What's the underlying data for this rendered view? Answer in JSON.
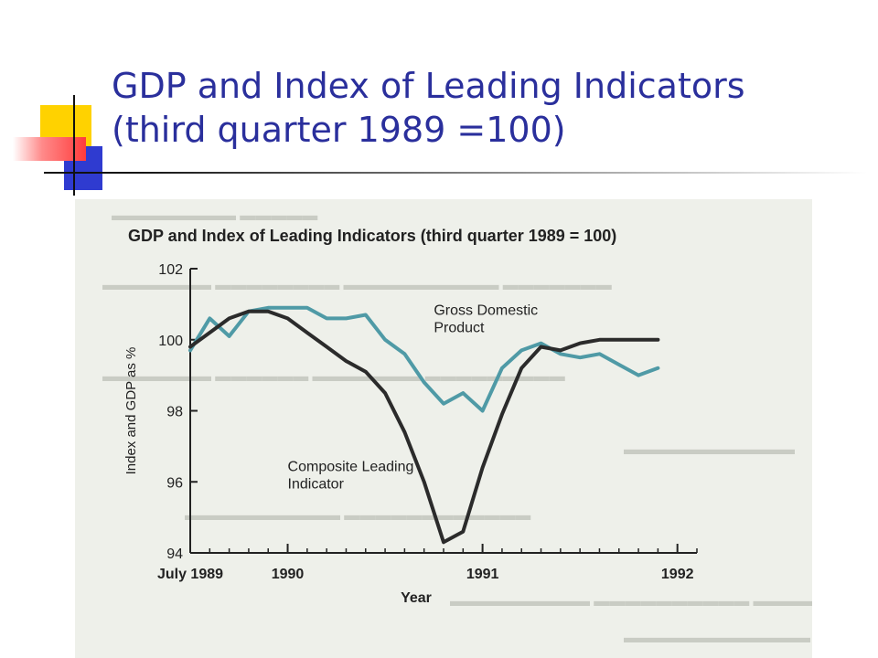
{
  "slide": {
    "title_line1": "GDP and Index of Leading Indicators",
    "title_line2": "(third quarter 1989 =100)"
  },
  "colors": {
    "title": "#2a2f9c",
    "gdp_line": "#4f9aa6",
    "leading_line": "#2b2b2b",
    "deco_yellow": "#ffd200",
    "deco_blue": "#2f3bd0",
    "deco_red": "#ff3b3b"
  },
  "chart_data": {
    "type": "line",
    "title": "GDP and Index of Leading Indicators (third quarter 1989 = 100)",
    "xlabel": "Year",
    "ylabel": "Index and GDP as %",
    "x_ticks": [
      {
        "x": 1989.5,
        "label": "July 1989"
      },
      {
        "x": 1990.0,
        "label": "1990"
      },
      {
        "x": 1991.0,
        "label": "1991"
      },
      {
        "x": 1992.0,
        "label": "1992"
      }
    ],
    "y_ticks": [
      94,
      96,
      98,
      100,
      102
    ],
    "xlim": [
      1989.5,
      1992.1
    ],
    "ylim": [
      94,
      102
    ],
    "grid": false,
    "series": [
      {
        "name": "Gross Domestic Product",
        "label_lines": [
          "Gross Domestic",
          "Product"
        ],
        "x": [
          1989.5,
          1989.6,
          1989.7,
          1989.8,
          1989.9,
          1990.0,
          1990.1,
          1990.2,
          1990.3,
          1990.4,
          1990.5,
          1990.6,
          1990.7,
          1990.8,
          1990.9,
          1991.0,
          1991.1,
          1991.2,
          1991.3,
          1991.4,
          1991.5,
          1991.6,
          1991.7,
          1991.8,
          1991.9
        ],
        "values": [
          99.7,
          100.6,
          100.1,
          100.8,
          100.9,
          100.9,
          100.9,
          100.6,
          100.6,
          100.7,
          100.0,
          99.6,
          98.8,
          98.2,
          98.5,
          98.0,
          99.2,
          99.7,
          99.9,
          99.6,
          99.5,
          99.6,
          99.3,
          99.0,
          99.2
        ]
      },
      {
        "name": "Composite Leading Indicator",
        "label_lines": [
          "Composite Leading",
          "Indicator"
        ],
        "x": [
          1989.5,
          1989.6,
          1989.7,
          1989.8,
          1989.9,
          1990.0,
          1990.1,
          1990.2,
          1990.3,
          1990.4,
          1990.5,
          1990.6,
          1990.7,
          1990.8,
          1990.9,
          1991.0,
          1991.1,
          1991.2,
          1991.3,
          1991.4,
          1991.5,
          1991.6,
          1991.7,
          1991.8,
          1991.9
        ],
        "values": [
          99.8,
          100.2,
          100.6,
          100.8,
          100.8,
          100.6,
          100.2,
          99.8,
          99.4,
          99.1,
          98.5,
          97.4,
          96.0,
          94.3,
          94.6,
          96.4,
          97.9,
          99.2,
          99.8,
          99.7,
          99.9,
          100.0,
          100.0,
          100.0,
          100.0
        ]
      }
    ]
  }
}
